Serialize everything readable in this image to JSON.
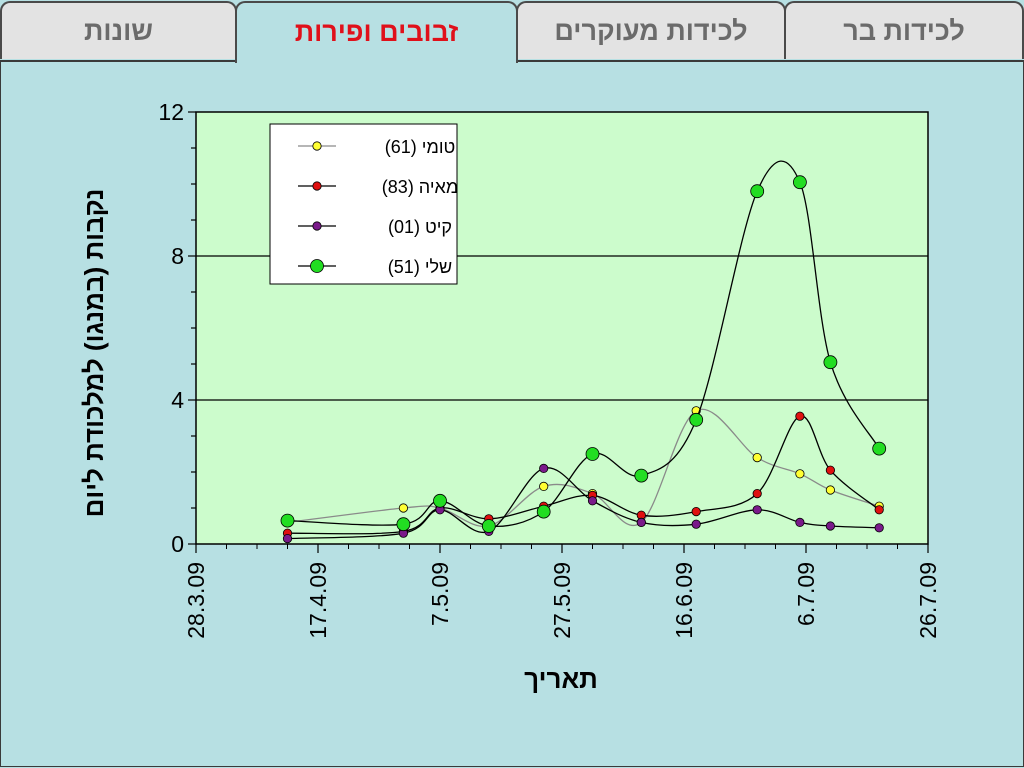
{
  "tabs": [
    {
      "label": "שונות",
      "active": false
    },
    {
      "label": "זבובים ופירות",
      "active": true
    },
    {
      "label": "לכידות מעוקרים",
      "active": false
    },
    {
      "label": "לכידות בר",
      "active": false
    }
  ],
  "colors": {
    "background": "#b7e0e3",
    "plot_area": "#ccfccc",
    "active_tab_text": "#e0101a",
    "inactive_tab_text": "#6b6b6b"
  },
  "chart_data": {
    "type": "line",
    "xlabel": "תאריך",
    "ylabel": "נקבות (במנגו) למלכודת ליום",
    "x_ticks": [
      "28.3.09",
      "17.4.09",
      "7.5.09",
      "27.5.09",
      "16.6.09",
      "6.7.09",
      "26.7.09"
    ],
    "xlim": [
      "2009-03-28",
      "2009-07-26"
    ],
    "ylim": [
      0,
      12
    ],
    "y_ticks": [
      0,
      4,
      8,
      12
    ],
    "grid_y": [
      4,
      8
    ],
    "legend_position": "top-left",
    "series": [
      {
        "name": "טומי (61)",
        "color": "#ffff33",
        "line_color": "#8a8a8a",
        "marker_size": "small",
        "points": [
          {
            "x": "2009-04-12",
            "y": 0.6
          },
          {
            "x": "2009-05-01",
            "y": 1.0
          },
          {
            "x": "2009-05-07",
            "y": 1.0
          },
          {
            "x": "2009-05-15",
            "y": 0.5
          },
          {
            "x": "2009-05-24",
            "y": 1.6
          },
          {
            "x": "2009-06-01",
            "y": 1.4
          },
          {
            "x": "2009-06-09",
            "y": 0.6
          },
          {
            "x": "2009-06-18",
            "y": 3.7
          },
          {
            "x": "2009-06-28",
            "y": 2.4
          },
          {
            "x": "2009-07-05",
            "y": 1.95
          },
          {
            "x": "2009-07-10",
            "y": 1.5
          },
          {
            "x": "2009-07-18",
            "y": 1.05
          }
        ]
      },
      {
        "name": "מאיה (83)",
        "color": "#e01010",
        "line_color": "#000000",
        "marker_size": "small",
        "points": [
          {
            "x": "2009-04-12",
            "y": 0.3
          },
          {
            "x": "2009-05-01",
            "y": 0.35
          },
          {
            "x": "2009-05-07",
            "y": 1.0
          },
          {
            "x": "2009-05-15",
            "y": 0.7
          },
          {
            "x": "2009-05-24",
            "y": 1.05
          },
          {
            "x": "2009-06-01",
            "y": 1.35
          },
          {
            "x": "2009-06-09",
            "y": 0.8
          },
          {
            "x": "2009-06-18",
            "y": 0.9
          },
          {
            "x": "2009-06-28",
            "y": 1.4
          },
          {
            "x": "2009-07-05",
            "y": 3.55
          },
          {
            "x": "2009-07-10",
            "y": 2.05
          },
          {
            "x": "2009-07-18",
            "y": 0.95
          }
        ]
      },
      {
        "name": "קיט (01)",
        "color": "#7a1a8a",
        "line_color": "#000000",
        "marker_size": "small",
        "points": [
          {
            "x": "2009-04-12",
            "y": 0.15
          },
          {
            "x": "2009-05-01",
            "y": 0.3
          },
          {
            "x": "2009-05-07",
            "y": 0.95
          },
          {
            "x": "2009-05-15",
            "y": 0.35
          },
          {
            "x": "2009-05-24",
            "y": 2.1
          },
          {
            "x": "2009-06-01",
            "y": 1.2
          },
          {
            "x": "2009-06-09",
            "y": 0.6
          },
          {
            "x": "2009-06-18",
            "y": 0.55
          },
          {
            "x": "2009-06-28",
            "y": 0.95
          },
          {
            "x": "2009-07-05",
            "y": 0.6
          },
          {
            "x": "2009-07-10",
            "y": 0.5
          },
          {
            "x": "2009-07-18",
            "y": 0.45
          }
        ]
      },
      {
        "name": "שלי (51)",
        "color": "#22dd22",
        "line_color": "#000000",
        "marker_size": "large",
        "points": [
          {
            "x": "2009-04-12",
            "y": 0.65
          },
          {
            "x": "2009-05-01",
            "y": 0.55
          },
          {
            "x": "2009-05-07",
            "y": 1.2
          },
          {
            "x": "2009-05-15",
            "y": 0.5
          },
          {
            "x": "2009-05-24",
            "y": 0.9
          },
          {
            "x": "2009-06-01",
            "y": 2.5
          },
          {
            "x": "2009-06-09",
            "y": 1.9
          },
          {
            "x": "2009-06-18",
            "y": 3.45
          },
          {
            "x": "2009-06-28",
            "y": 9.8
          },
          {
            "x": "2009-07-05",
            "y": 10.05
          },
          {
            "x": "2009-07-10",
            "y": 5.05
          },
          {
            "x": "2009-07-18",
            "y": 2.65
          }
        ]
      }
    ]
  }
}
